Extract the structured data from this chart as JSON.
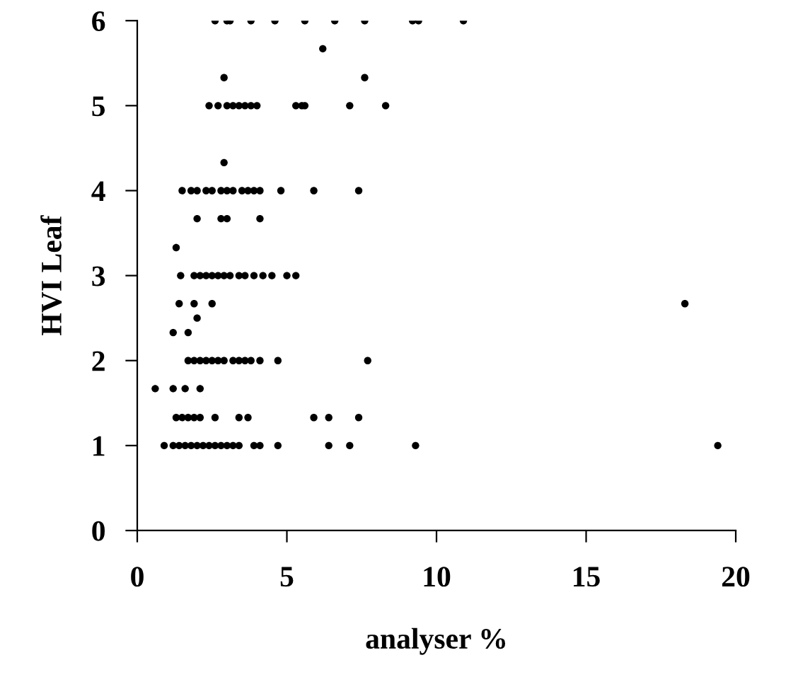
{
  "chart_data": {
    "type": "scatter",
    "xlabel": "analyser %",
    "ylabel": "HVI Leaf",
    "xlim": [
      0,
      20
    ],
    "ylim": [
      0,
      6
    ],
    "xticks": [
      0,
      5,
      10,
      15,
      20
    ],
    "yticks": [
      0,
      1,
      2,
      3,
      4,
      5,
      6
    ],
    "marker": "circle",
    "grid": false,
    "legend": false,
    "series": [
      {
        "color": "#000000",
        "x": [
          2.6,
          3.0,
          3.1,
          3.8,
          4.6,
          5.6,
          6.6,
          7.6,
          9.2,
          9.4,
          10.9,
          6.2,
          2.9,
          7.6,
          2.4,
          2.7,
          3.0,
          3.2,
          3.4,
          3.6,
          3.8,
          4.0,
          5.3,
          5.5,
          5.6,
          7.1,
          8.3,
          2.9,
          1.5,
          1.8,
          2.0,
          2.3,
          2.5,
          2.8,
          3.0,
          3.2,
          3.5,
          3.7,
          3.9,
          4.1,
          4.8,
          5.9,
          7.4,
          2.0,
          2.8,
          3.0,
          4.1,
          1.3,
          1.45,
          1.9,
          2.1,
          2.3,
          2.5,
          2.7,
          2.9,
          3.1,
          3.4,
          3.6,
          3.9,
          4.2,
          4.5,
          5.0,
          5.3,
          1.4,
          1.9,
          2.5,
          18.3,
          2.0,
          1.2,
          1.7,
          1.7,
          1.9,
          2.1,
          2.3,
          2.5,
          2.7,
          2.9,
          3.2,
          3.4,
          3.6,
          3.8,
          4.1,
          4.7,
          7.7,
          0.6,
          1.2,
          1.6,
          2.1,
          1.3,
          1.5,
          1.7,
          1.9,
          2.1,
          2.6,
          3.4,
          3.7,
          5.9,
          6.4,
          7.4,
          0.9,
          1.2,
          1.4,
          1.6,
          1.8,
          2.0,
          2.2,
          2.4,
          2.6,
          2.8,
          3.0,
          3.2,
          3.4,
          3.9,
          4.1,
          4.7,
          6.4,
          7.1,
          9.3,
          19.4
        ],
        "values": [
          6,
          6,
          6,
          6,
          6,
          6,
          6,
          6,
          6,
          6,
          6,
          5.67,
          5.33,
          5.33,
          5,
          5,
          5,
          5,
          5,
          5,
          5,
          5,
          5,
          5,
          5,
          5,
          5,
          4.33,
          4,
          4,
          4,
          4,
          4,
          4,
          4,
          4,
          4,
          4,
          4,
          4,
          4,
          4,
          4,
          3.67,
          3.67,
          3.67,
          3.67,
          3.33,
          3,
          3,
          3,
          3,
          3,
          3,
          3,
          3,
          3,
          3,
          3,
          3,
          3,
          3,
          3,
          2.67,
          2.67,
          2.67,
          2.67,
          2.5,
          2.33,
          2.33,
          2,
          2,
          2,
          2,
          2,
          2,
          2,
          2,
          2,
          2,
          2,
          2,
          2,
          2,
          1.67,
          1.67,
          1.67,
          1.67,
          1.33,
          1.33,
          1.33,
          1.33,
          1.33,
          1.33,
          1.33,
          1.33,
          1.33,
          1.33,
          1.33,
          1,
          1,
          1,
          1,
          1,
          1,
          1,
          1,
          1,
          1,
          1,
          1,
          1,
          1,
          1,
          1,
          1,
          1,
          1,
          1
        ]
      }
    ]
  }
}
